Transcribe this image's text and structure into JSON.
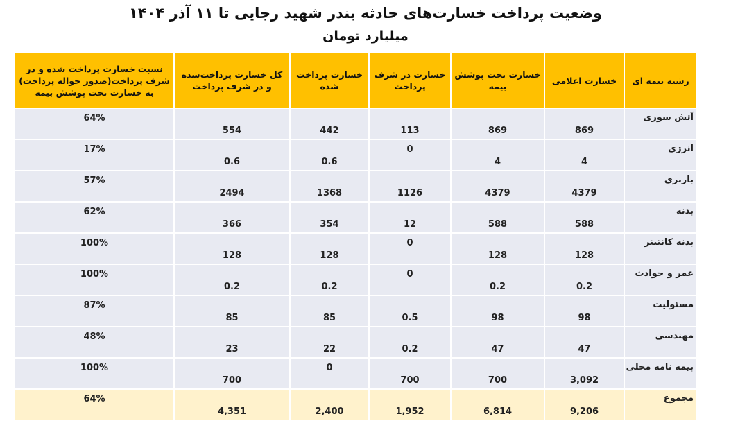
{
  "title": "وضعیت پرداخت خسارت‌های حادثه بندر شهید رجایی تا ۱۱ آذر ۱۴۰۴",
  "subtitle": "میلیارد تومان",
  "colors": {
    "header": "#FFC000",
    "row": "#E8EAF2",
    "total_row": "#FFF2CC"
  },
  "headers": [
    "رشته بیمه ای",
    "خسارت  اعلامی",
    "خسارت تحت پوشش بیمه",
    "خسارت در شرف پرداخت",
    "خسارت پرداخت شده",
    "کل خسارت پرداخت‌شده و در شرف پرداخت",
    "نسبت خسارت پرداخت شده و در شرف پرداخت(صدور حواله پرداخت) به خسارت تحت پوشش بیمه"
  ],
  "rows": [
    [
      "آتش سوزی",
      "869",
      "869",
      "113",
      "442",
      "554",
      "64%"
    ],
    [
      "انرژی",
      "4",
      "4",
      "0",
      "0.6",
      "0.6",
      "17%"
    ],
    [
      "باربری",
      "4379",
      "4379",
      "1126",
      "1368",
      "2494",
      "57%"
    ],
    [
      "بدنه",
      "588",
      "588",
      "12",
      "354",
      "366",
      "62%"
    ],
    [
      "بدنه کانتینر",
      "128",
      "128",
      "0",
      "128",
      "128",
      "100%"
    ],
    [
      "عمر و حوادث",
      "0.2",
      "0.2",
      "0",
      "0.2",
      "0.2",
      "100%"
    ],
    [
      "مسئولیت",
      "98",
      "98",
      "0.5",
      "85",
      "85",
      "87%"
    ],
    [
      "مهندسی",
      "47",
      "47",
      "0.2",
      "22",
      "23",
      "48%"
    ],
    [
      "بیمه نامه محلی",
      "3,092",
      "700",
      "700",
      "0",
      "700",
      "100%"
    ],
    [
      "مجموع",
      "9,206",
      "6,814",
      "1,952",
      "2,400",
      "4,351",
      "64%"
    ]
  ]
}
